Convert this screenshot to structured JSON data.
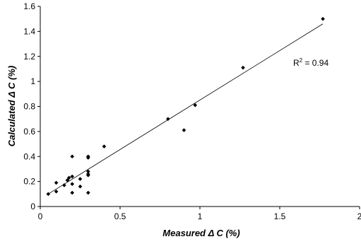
{
  "chart_data": {
    "type": "scatter",
    "title": "",
    "xlabel": "Measured Δ C (%)",
    "ylabel": "Calculated Δ C (%)",
    "xlim": [
      0,
      2
    ],
    "ylim": [
      0,
      1.6
    ],
    "x_ticks": [
      0,
      0.5,
      1,
      1.5,
      2
    ],
    "y_ticks": [
      0,
      0.2,
      0.4,
      0.6,
      0.8,
      1,
      1.2,
      1.4,
      1.6
    ],
    "x_tick_labels": [
      "0",
      "0.5",
      "1",
      "1.5",
      "2"
    ],
    "y_tick_labels": [
      "0",
      "0.2",
      "0.4",
      "0.6",
      "0.8",
      "1",
      "1.2",
      "1.4",
      "1.6"
    ],
    "grid": false,
    "legend": "none",
    "marker": "diamond",
    "marker_color": "#000000",
    "series": [
      {
        "x": [
          0.05,
          0.1,
          0.1,
          0.15,
          0.17,
          0.18,
          0.2,
          0.2,
          0.2,
          0.2,
          0.25,
          0.25,
          0.3,
          0.3,
          0.3,
          0.3,
          0.3,
          0.3,
          0.4,
          0.8,
          0.9,
          0.97,
          1.27,
          1.77
        ],
        "y": [
          0.1,
          0.12,
          0.19,
          0.17,
          0.21,
          0.23,
          0.11,
          0.18,
          0.24,
          0.4,
          0.16,
          0.22,
          0.11,
          0.25,
          0.26,
          0.28,
          0.39,
          0.4,
          0.48,
          0.7,
          0.61,
          0.81,
          1.11,
          1.5
        ]
      }
    ],
    "trendline": {
      "type": "linear",
      "x": [
        0.05,
        1.77
      ],
      "y": [
        0.1,
        1.46
      ]
    },
    "annotation": {
      "prefix": "R",
      "superscript": "2",
      "suffix": " = 0.94"
    }
  }
}
